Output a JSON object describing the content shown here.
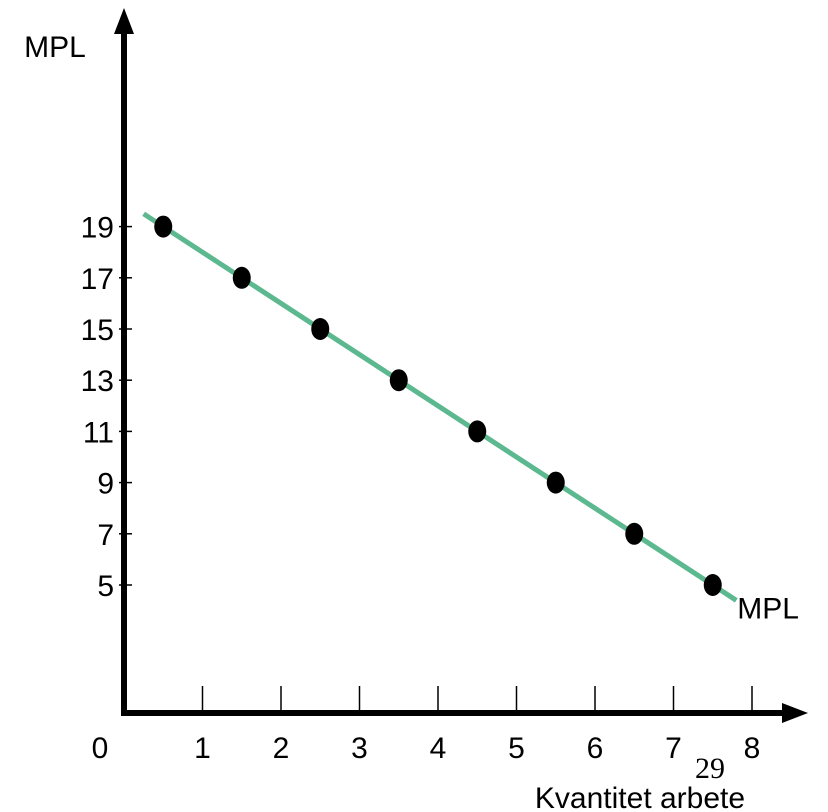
{
  "page_number": "29",
  "chart_data": {
    "type": "line",
    "title": "",
    "xlabel": "Kvantitet arbete",
    "ylabel": "MPL",
    "curve_label": "MPL",
    "x_origin_label": "0",
    "xticks": [
      1,
      2,
      3,
      4,
      5,
      6,
      7,
      8
    ],
    "yticks": [
      5,
      7,
      9,
      11,
      13,
      15,
      17,
      19
    ],
    "xlim": [
      0,
      8.5
    ],
    "ylim": [
      0,
      24
    ],
    "points": {
      "x": [
        0.5,
        1.5,
        2.5,
        3.5,
        4.5,
        5.5,
        6.5,
        7.5
      ],
      "y": [
        19,
        17,
        15,
        13,
        11,
        9,
        7,
        5
      ]
    },
    "line": {
      "x": [
        0.25,
        7.8
      ],
      "y": [
        19.5,
        4.4
      ]
    },
    "grid": false,
    "colors": {
      "line": "#5cb88f",
      "points": "#000000",
      "axes": "#000000"
    }
  }
}
